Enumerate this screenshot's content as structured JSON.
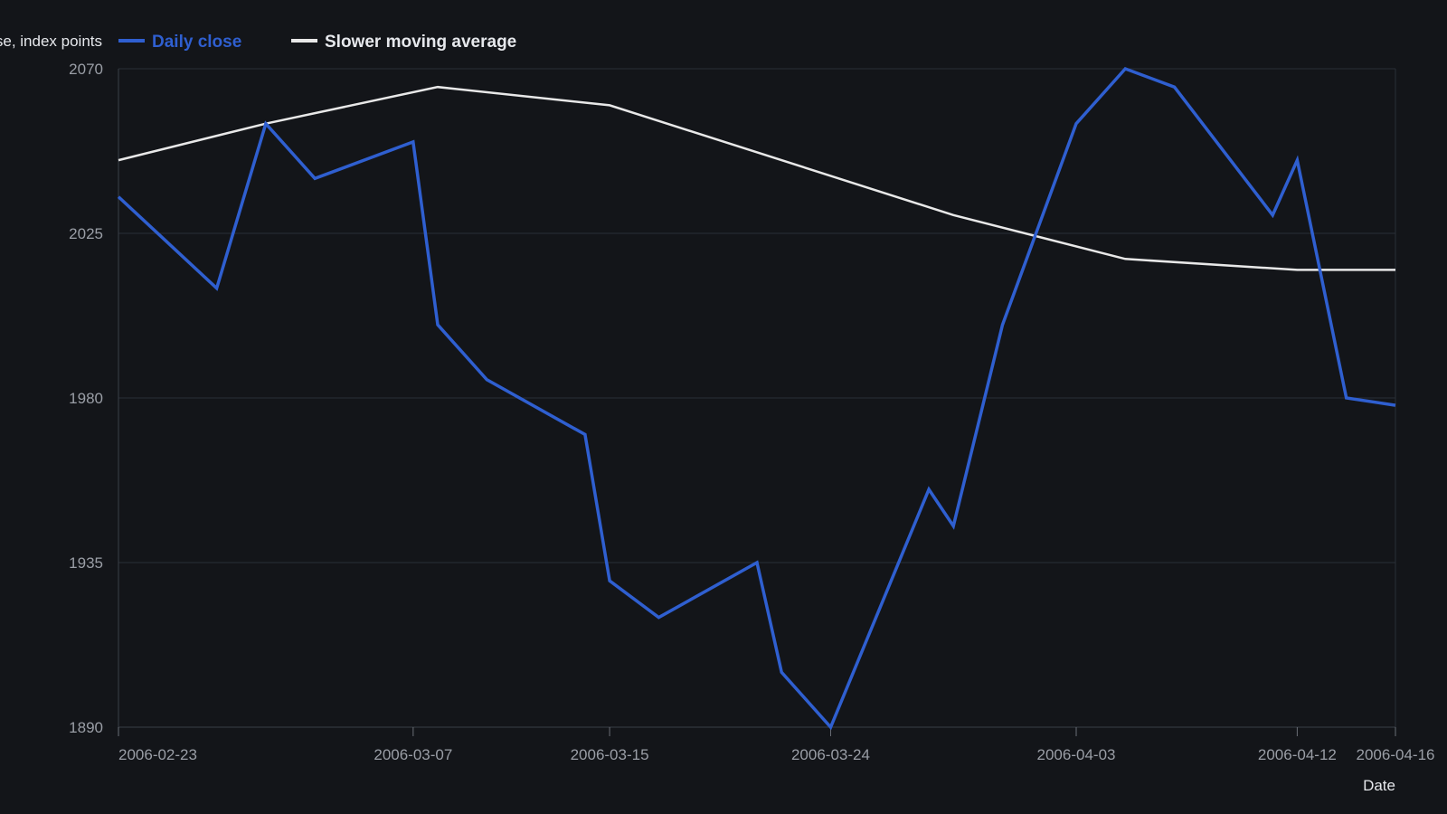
{
  "chart_data": {
    "type": "line",
    "title": "",
    "xlabel": "Date",
    "ylabel": "Close, index points",
    "ylim": [
      1890,
      2070
    ],
    "xlim": [
      "2006-02-23",
      "2006-04-16"
    ],
    "grid": "horizontal",
    "legend_position": "top",
    "x_ticks": [
      "2006-02-23",
      "2006-03-07",
      "2006-03-15",
      "2006-03-24",
      "2006-04-03",
      "2006-04-12",
      "2006-04-16"
    ],
    "y_ticks": [
      1890,
      1935,
      1980,
      2025,
      2070
    ],
    "series": [
      {
        "name": "Daily close",
        "color": "#2f5fd0",
        "points": [
          {
            "x": "2006-02-23",
            "y": 2035
          },
          {
            "x": "2006-02-27",
            "y": 2010
          },
          {
            "x": "2006-03-01",
            "y": 2055
          },
          {
            "x": "2006-03-03",
            "y": 2040
          },
          {
            "x": "2006-03-07",
            "y": 2050
          },
          {
            "x": "2006-03-08",
            "y": 2000
          },
          {
            "x": "2006-03-10",
            "y": 1985
          },
          {
            "x": "2006-03-14",
            "y": 1970
          },
          {
            "x": "2006-03-15",
            "y": 1930
          },
          {
            "x": "2006-03-17",
            "y": 1920
          },
          {
            "x": "2006-03-21",
            "y": 1935
          },
          {
            "x": "2006-03-22",
            "y": 1905
          },
          {
            "x": "2006-03-24",
            "y": 1890
          },
          {
            "x": "2006-03-28",
            "y": 1955
          },
          {
            "x": "2006-03-29",
            "y": 1945
          },
          {
            "x": "2006-03-31",
            "y": 2000
          },
          {
            "x": "2006-04-03",
            "y": 2055
          },
          {
            "x": "2006-04-05",
            "y": 2070
          },
          {
            "x": "2006-04-07",
            "y": 2065
          },
          {
            "x": "2006-04-11",
            "y": 2030
          },
          {
            "x": "2006-04-12",
            "y": 2045
          },
          {
            "x": "2006-04-14",
            "y": 1980
          },
          {
            "x": "2006-04-16",
            "y": 1978
          }
        ]
      },
      {
        "name": "Slower moving average",
        "color": "#e8e8e8",
        "points": [
          {
            "x": "2006-02-23",
            "y": 2045
          },
          {
            "x": "2006-03-01",
            "y": 2055
          },
          {
            "x": "2006-03-08",
            "y": 2065
          },
          {
            "x": "2006-03-15",
            "y": 2060
          },
          {
            "x": "2006-03-29",
            "y": 2030
          },
          {
            "x": "2006-04-05",
            "y": 2018
          },
          {
            "x": "2006-04-12",
            "y": 2015
          },
          {
            "x": "2006-04-16",
            "y": 2015
          }
        ]
      }
    ]
  }
}
